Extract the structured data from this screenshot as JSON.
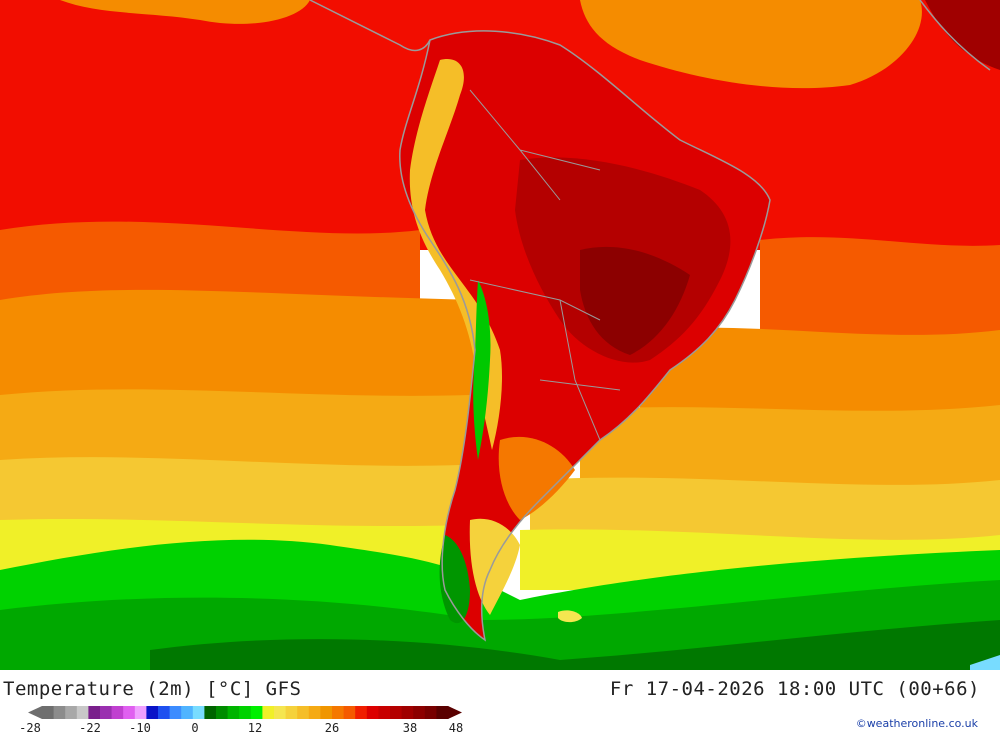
{
  "map": {
    "title": "Temperature (2m) [°C] GFS",
    "valid_time": "Fr 17-04-2026 18:00 UTC (00+66)",
    "credit": "©weatheronline.co.uk"
  },
  "legend": {
    "tick_labels": [
      "-28",
      "-22",
      "-10",
      "0",
      "12",
      "26",
      "38",
      "48"
    ],
    "colors": [
      "#6e6e6e",
      "#8c8c8c",
      "#a8a8a8",
      "#c8c8c8",
      "#7a1f8c",
      "#9a2fb0",
      "#c040d0",
      "#e060f0",
      "#f0a0ff",
      "#0a14c8",
      "#1e50f0",
      "#3c8cff",
      "#50b4ff",
      "#78dcff",
      "#006400",
      "#008c00",
      "#00b400",
      "#00d200",
      "#00f000",
      "#f0f028",
      "#f5e650",
      "#f5d23c",
      "#f5be28",
      "#f5aa14",
      "#f09600",
      "#f57800",
      "#f55a00",
      "#f01e00",
      "#dc0000",
      "#c80000",
      "#b40000",
      "#a00000",
      "#8c0000",
      "#780000",
      "#5a0000"
    ]
  },
  "palette": {
    "sea_red": "#f20d00",
    "deep_red": "#c30000",
    "dark_red": "#a00000",
    "orange_red": "#f55a00",
    "orange": "#f58c00",
    "light_orange": "#f5aa14",
    "yellow_orange": "#f5c832",
    "yellow": "#f0f028",
    "light_green": "#00d200",
    "green": "#00a800",
    "dark_green": "#007800",
    "coast": "#9a9a9a"
  }
}
